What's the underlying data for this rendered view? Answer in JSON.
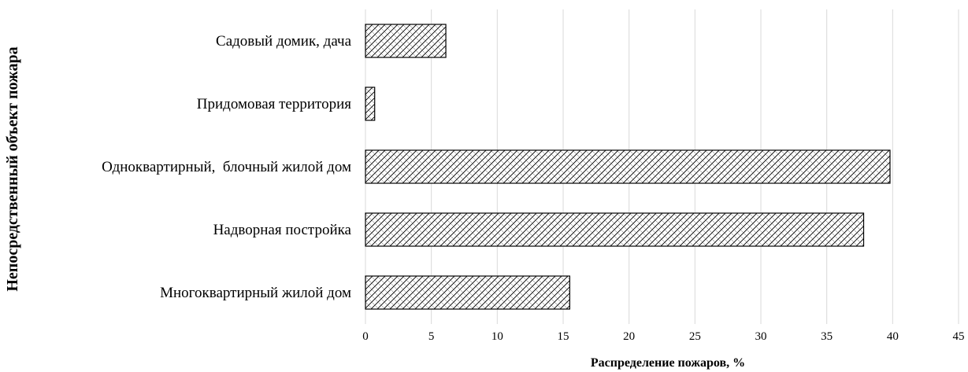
{
  "chart_data": {
    "type": "bar",
    "orientation": "horizontal",
    "categories": [
      "Садовый домик, дача",
      "Придомовая территория",
      "Одноквартирный,  блочный жилой дом",
      "Надворная постройка",
      "Многоквартирный жилой дом"
    ],
    "values": [
      6.1,
      0.7,
      39.8,
      37.8,
      15.5
    ],
    "xlabel": "Распределение пожаров, %",
    "ylabel": "Непосредственный объект пожара",
    "xlim": [
      0,
      45
    ],
    "xticks": [
      0,
      5,
      10,
      15,
      20,
      25,
      30,
      35,
      40,
      45
    ],
    "grid": "vertical",
    "legend": "none",
    "bar_fill": "crosshatch"
  }
}
